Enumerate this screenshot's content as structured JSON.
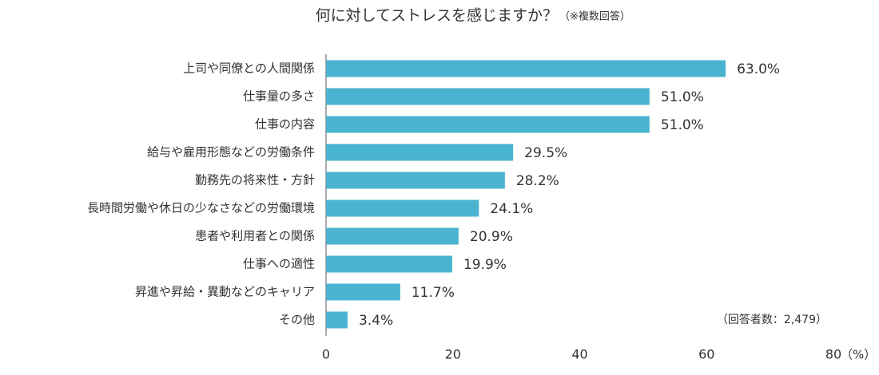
{
  "chart_data": {
    "type": "bar",
    "orientation": "horizontal",
    "title": "何に対してストレスを感じますか？",
    "subtitle": "（※複数回答）",
    "note": "（回答者数：2,479）",
    "x_unit": "（%）",
    "categories": [
      "上司や同僚との人間関係",
      "仕事量の多さ",
      "仕事の内容",
      "給与や雇用形態などの労働条件",
      "勤務先の将来性・方針",
      "長時間労働や休日の少なさなどの労働環境",
      "患者や利用者との関係",
      "仕事への適性",
      "昇進や昇給・異動などのキャリア",
      "その他"
    ],
    "values": [
      63.0,
      51.0,
      51.0,
      29.5,
      28.2,
      24.1,
      20.9,
      19.9,
      11.7,
      3.4
    ],
    "value_labels": [
      "63.0%",
      "51.0%",
      "51.0%",
      "29.5%",
      "28.2%",
      "24.1%",
      "20.9%",
      "19.9%",
      "11.7%",
      "3.4%"
    ],
    "color": "#4ab3cf",
    "xlim": [
      0,
      80
    ],
    "xticks": [
      0,
      20,
      40,
      60,
      80
    ]
  }
}
